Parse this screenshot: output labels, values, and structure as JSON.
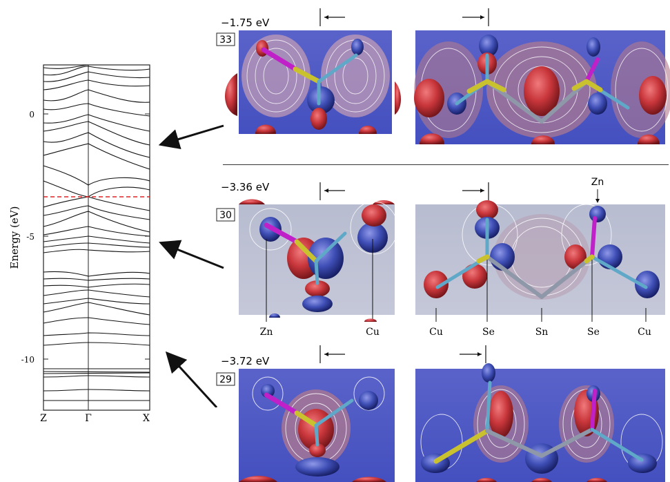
{
  "band_structure": {
    "ylabel": "Energy (eV)",
    "ytick_labels": [
      "0",
      "-5",
      "-10"
    ],
    "xtick_labels": [
      "Z",
      "Γ",
      "X"
    ],
    "reference_line": "dashed red line at −3.36 eV (band 30)"
  },
  "panels": [
    {
      "band_index": "33",
      "energy": "−1.75 eV",
      "atom_labels": []
    },
    {
      "band_index": "30",
      "energy": "−3.36 eV",
      "top_label": "Zn",
      "atom_labels": [
        "Zn",
        "Cu",
        "Cu",
        "Se",
        "Sn",
        "Se",
        "Cu"
      ]
    },
    {
      "band_index": "29",
      "energy": "−3.72 eV",
      "atom_labels": []
    }
  ],
  "colors": {
    "positive_lobe": "#c8363b",
    "negative_lobe": "#3f4fb6",
    "bond_yellow": "#c9c22e",
    "bond_magenta": "#c020c8",
    "bond_cyan": "#5fa8c8",
    "bond_gray": "#8f98a8",
    "dashed_line": "#e02020"
  }
}
